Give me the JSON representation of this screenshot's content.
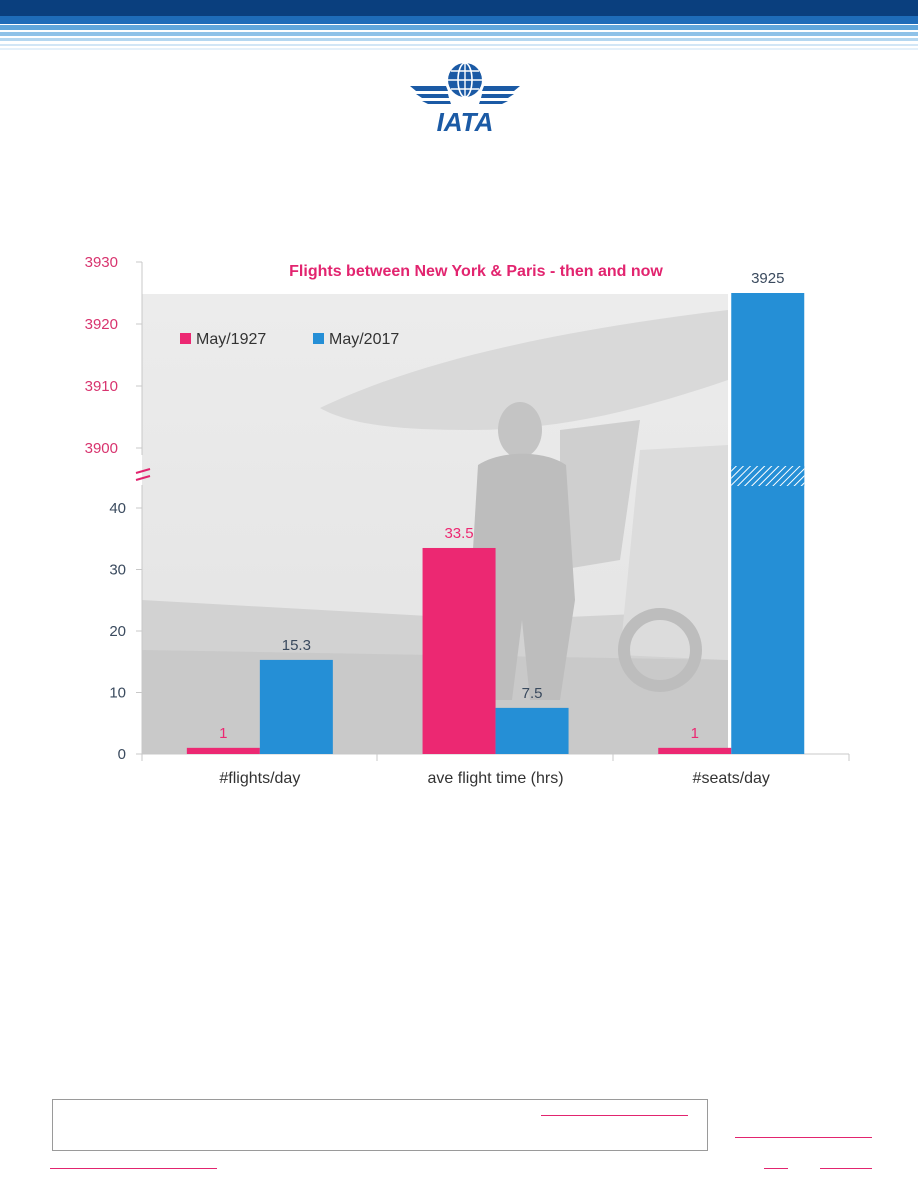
{
  "colors": {
    "may1927": "#ec2872",
    "may2017": "#258fd6",
    "axis_text_low": "#3a4a5e",
    "axis_text_high": "#d8336e",
    "title": "#e2246f",
    "iata_blue": "#1b5aa5"
  },
  "logo": {
    "text": "IATA"
  },
  "chart_data": {
    "type": "bar",
    "title": "Flights between New York & Paris - then and now",
    "categories": [
      "#flights/day",
      "ave flight time (hrs)",
      "#seats/day"
    ],
    "series": [
      {
        "name": "May/1927",
        "values": [
          1,
          33.5,
          1
        ],
        "labels": [
          "1",
          "33.5",
          "1"
        ]
      },
      {
        "name": "May/2017",
        "values": [
          15.3,
          7.5,
          3925
        ],
        "labels": [
          "15.3",
          "7.5",
          "3925"
        ]
      }
    ],
    "y_lower_ticks": [
      "0",
      "10",
      "20",
      "30",
      "40"
    ],
    "y_upper_ticks": [
      "3900",
      "3910",
      "3920",
      "3930"
    ],
    "ylim_lower": [
      0,
      40
    ],
    "ylim_upper": [
      3900,
      3930
    ],
    "axis_break": true,
    "legend_position": "top-left",
    "background": "photo of aviator in front of aircraft"
  }
}
